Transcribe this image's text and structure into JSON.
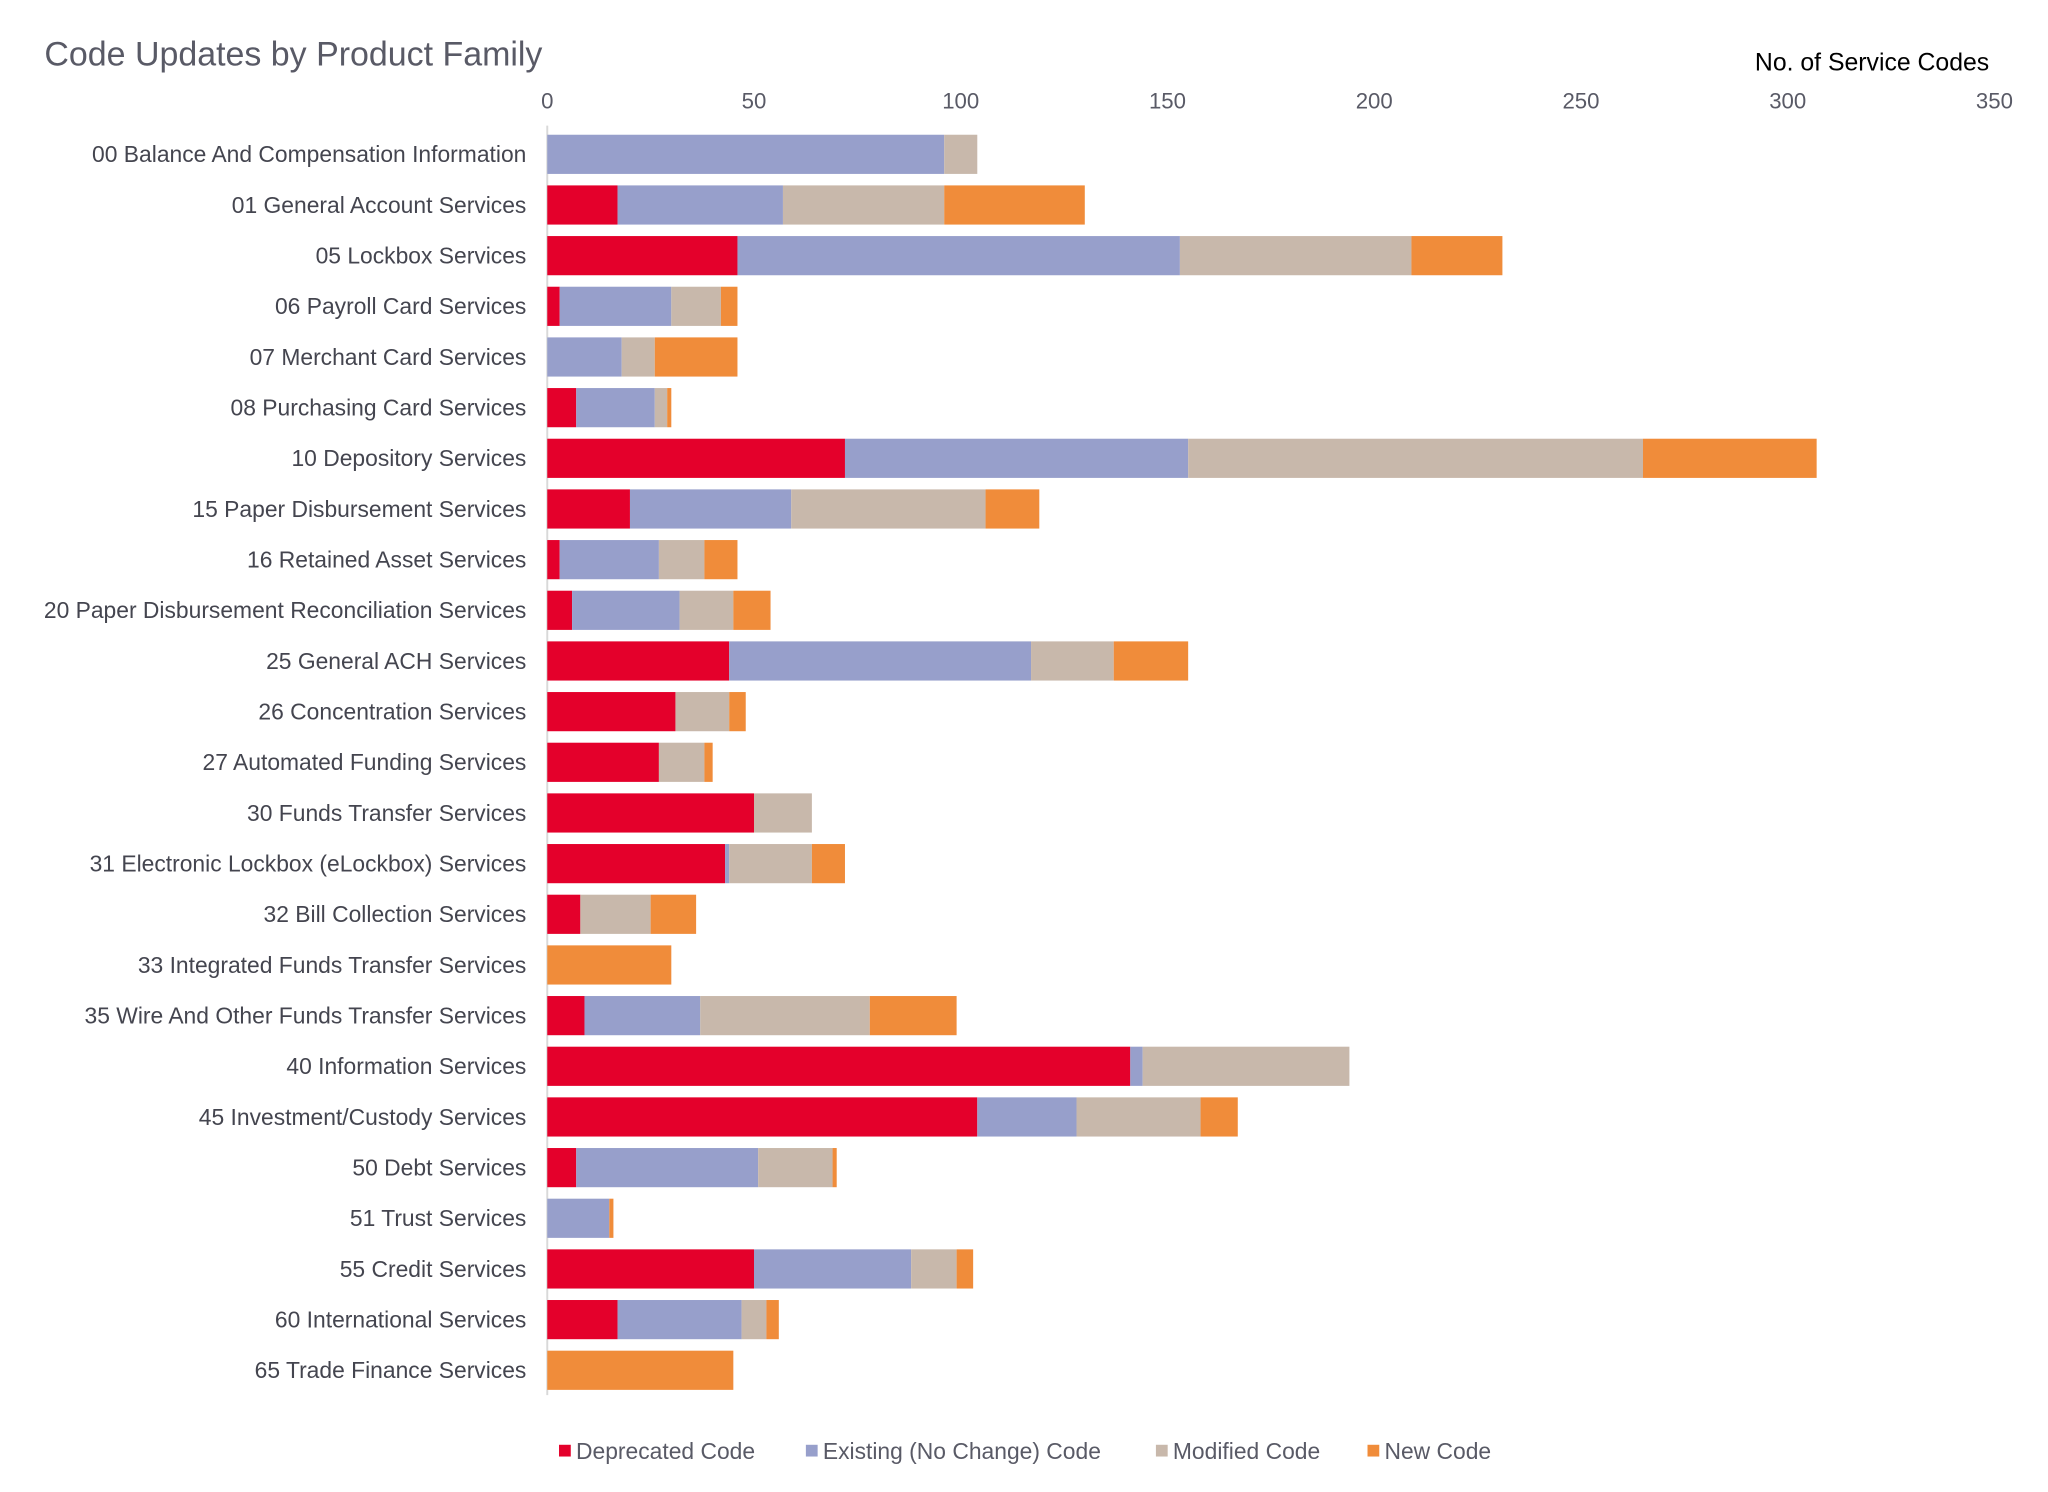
{
  "chart_data": {
    "type": "bar",
    "orientation": "horizontal",
    "stacked": true,
    "title": "Code Updates by Product Family",
    "xlabel": "No. of Service Codes",
    "ylabel": "",
    "xlim": [
      0,
      350
    ],
    "xticks": [
      "0",
      "50",
      "100",
      "150",
      "200",
      "250",
      "300",
      "350"
    ],
    "xaxis_position": "top",
    "grid": false,
    "legend_position": "bottom",
    "categories": [
      "00 Balance And Compensation Information",
      "01 General Account Services",
      "05 Lockbox Services",
      "06 Payroll Card Services",
      "07 Merchant Card Services",
      "08 Purchasing Card Services",
      "10 Depository Services",
      "15 Paper Disbursement Services",
      "16 Retained Asset Services",
      "20 Paper Disbursement Reconciliation Services",
      "25 General ACH Services",
      "26 Concentration Services",
      "27 Automated Funding Services",
      "30 Funds Transfer Services",
      "31 Electronic Lockbox (eLockbox) Services",
      "32 Bill Collection Services",
      "33 Integrated Funds Transfer Services",
      "35 Wire And Other Funds Transfer Services",
      "40 Information Services",
      "45 Investment/Custody Services",
      "50 Debt Services",
      "51 Trust Services",
      "55 Credit Services",
      "60 International Services",
      "65 Trade Finance Services"
    ],
    "series": [
      {
        "name": "Deprecated Code",
        "color": "#e4002b",
        "values": [
          0,
          17,
          46,
          3,
          0,
          7,
          72,
          20,
          3,
          6,
          44,
          31,
          27,
          50,
          43,
          8,
          0,
          9,
          141,
          104,
          7,
          0,
          50,
          17,
          0
        ]
      },
      {
        "name": "Existing (No Change) Code",
        "color": "#979fcb",
        "values": [
          96,
          40,
          107,
          27,
          18,
          19,
          83,
          39,
          24,
          26,
          73,
          0,
          0,
          0,
          1,
          0,
          0,
          28,
          3,
          24,
          44,
          15,
          38,
          30,
          0
        ]
      },
      {
        "name": "Modified Code",
        "color": "#c8b8ab",
        "values": [
          8,
          39,
          56,
          12,
          8,
          3,
          110,
          47,
          11,
          13,
          20,
          13,
          11,
          14,
          20,
          17,
          0,
          41,
          50,
          30,
          18,
          0,
          11,
          6,
          0
        ]
      },
      {
        "name": "New Code",
        "color": "#f08c3a",
        "values": [
          0,
          34,
          22,
          4,
          20,
          1,
          42,
          13,
          8,
          9,
          18,
          4,
          2,
          0,
          8,
          11,
          30,
          21,
          0,
          9,
          1,
          1,
          4,
          3,
          45
        ]
      }
    ]
  }
}
